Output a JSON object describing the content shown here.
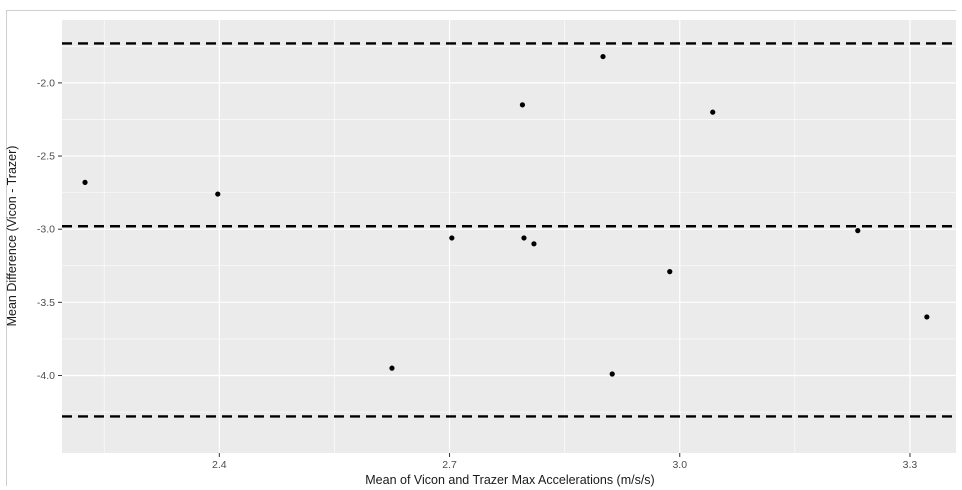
{
  "chart_data": {
    "type": "scatter",
    "title": "",
    "xlabel": "Mean of Vicon and Trazer Max Accelerations (m/s/s)",
    "ylabel": "Mean Difference (Vicon - Trazer)",
    "xlim": [
      2.195,
      3.36
    ],
    "ylim": [
      -4.53,
      -1.57
    ],
    "x_ticks": [
      2.4,
      2.7,
      3.0,
      3.3
    ],
    "x_tick_labels": [
      "2.4",
      "2.7",
      "3.0",
      "3.3"
    ],
    "y_ticks": [
      -2.0,
      -2.5,
      -3.0,
      -3.5,
      -4.0
    ],
    "y_tick_labels": [
      "-2.0",
      "-2.5",
      "-3.0",
      "-3.5",
      "-4.0"
    ],
    "grid": true,
    "background": "#ebebeb",
    "grid_color": "#ffffff",
    "point_color": "#000000",
    "reference_lines": [
      {
        "y": -1.73,
        "style": "dashed",
        "color": "#000000"
      },
      {
        "y": -2.98,
        "style": "dashed",
        "color": "#000000"
      },
      {
        "y": -4.28,
        "style": "dashed",
        "color": "#000000"
      }
    ],
    "points": [
      {
        "x": 2.225,
        "y": -2.68
      },
      {
        "x": 2.398,
        "y": -2.76
      },
      {
        "x": 2.625,
        "y": -3.95
      },
      {
        "x": 2.703,
        "y": -3.06
      },
      {
        "x": 2.795,
        "y": -2.15
      },
      {
        "x": 2.797,
        "y": -3.06
      },
      {
        "x": 2.81,
        "y": -3.1
      },
      {
        "x": 2.9,
        "y": -1.82
      },
      {
        "x": 2.912,
        "y": -3.99
      },
      {
        "x": 2.987,
        "y": -3.29
      },
      {
        "x": 3.043,
        "y": -2.2
      },
      {
        "x": 3.232,
        "y": -3.01
      },
      {
        "x": 3.322,
        "y": -3.6
      }
    ]
  }
}
